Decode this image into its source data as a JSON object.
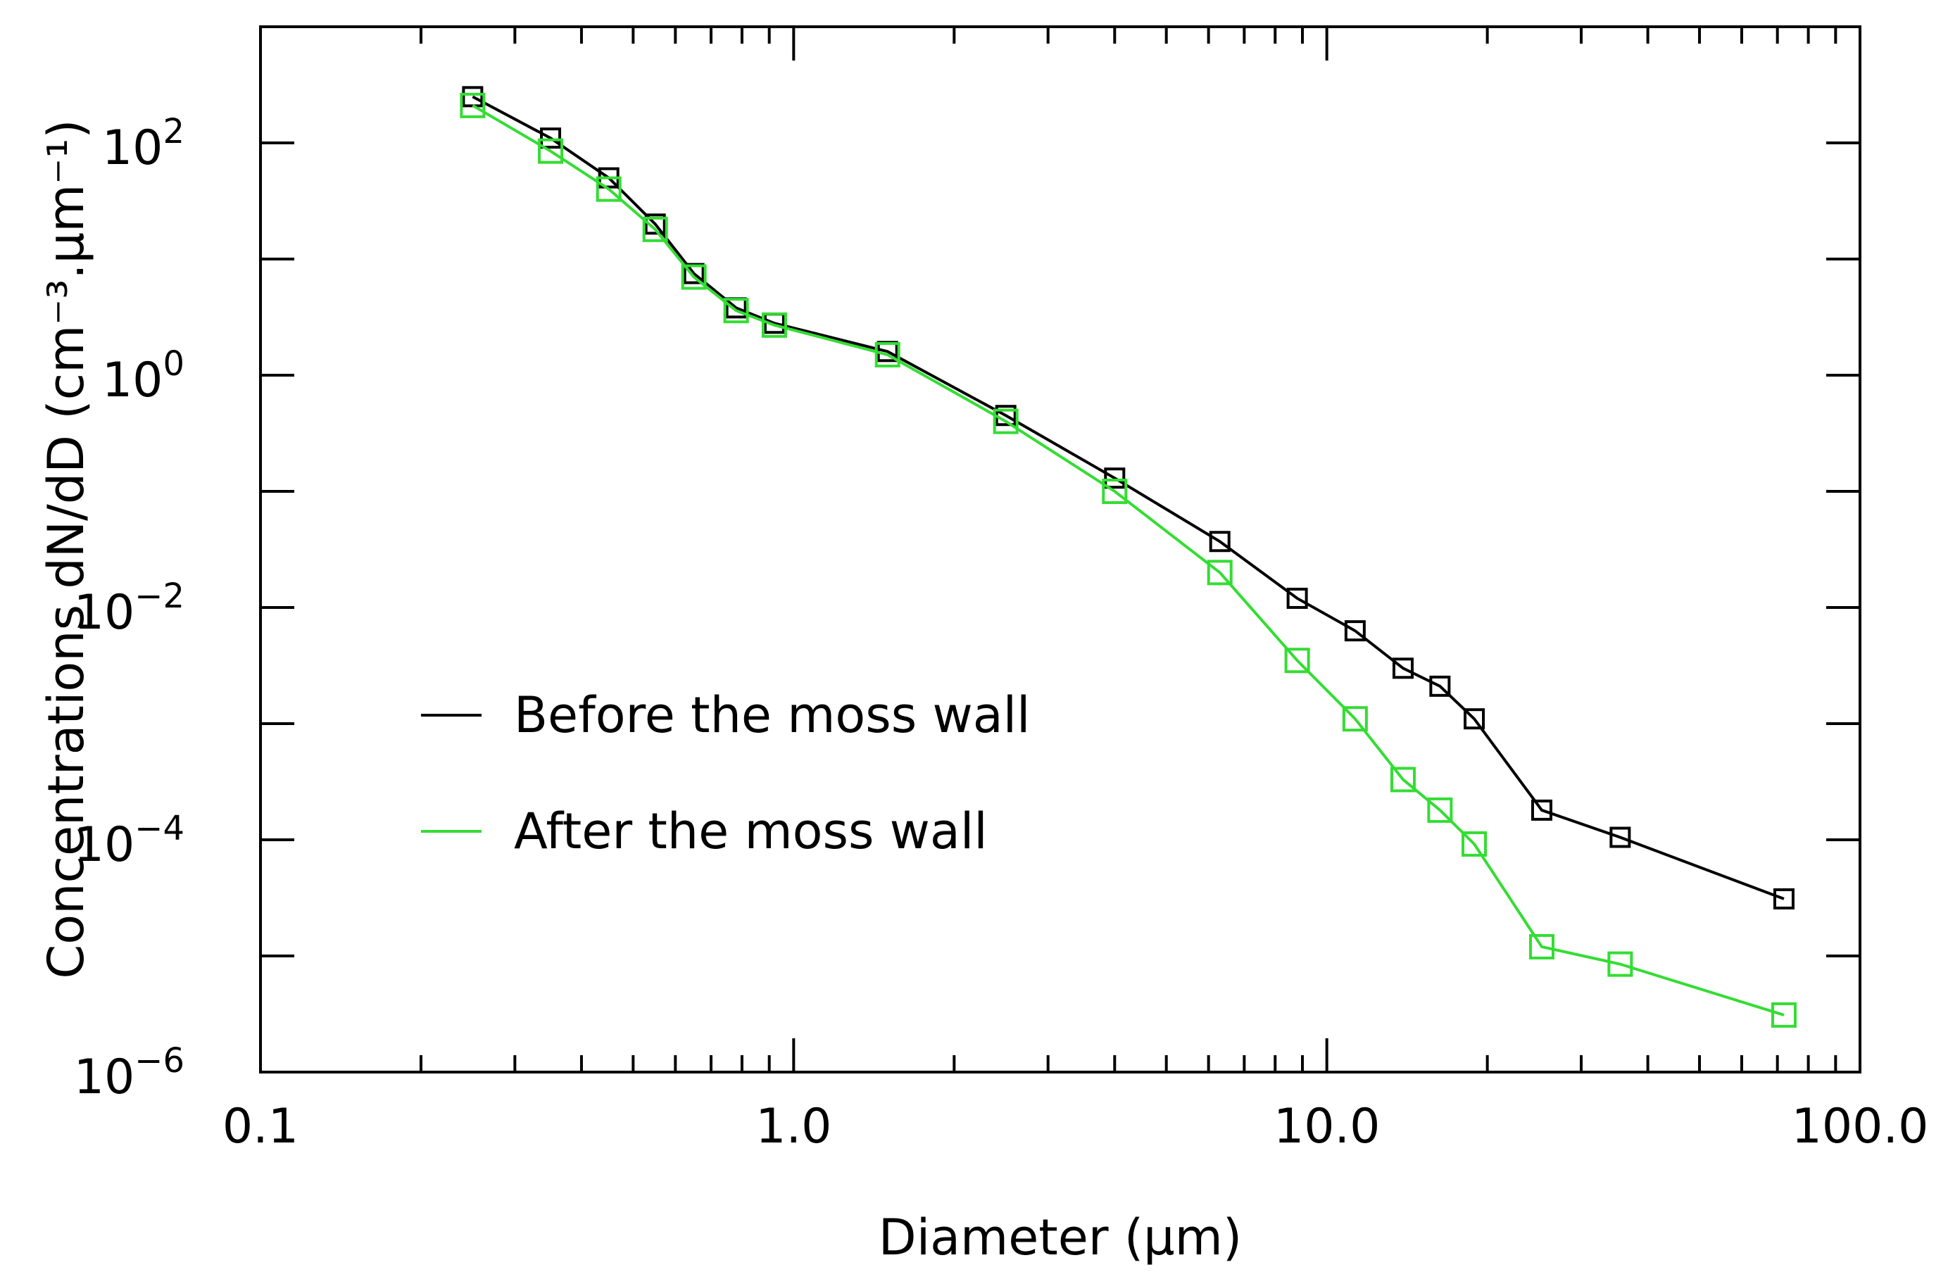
{
  "chart_data": {
    "type": "line",
    "title": "",
    "xlabel": "Diameter (μm)",
    "ylabel": "Concentrations dN/dD (cm⁻³.μm⁻¹)",
    "xscale": "log",
    "yscale": "log",
    "xlim": [
      0.1,
      100.0
    ],
    "ylim": [
      1e-06,
      1000
    ],
    "x_ticks": [
      {
        "value": 0.1,
        "label": "0.1"
      },
      {
        "value": 1.0,
        "label": "1.0"
      },
      {
        "value": 10.0,
        "label": "10.0"
      },
      {
        "value": 100.0,
        "label": "100.0"
      }
    ],
    "y_ticks": [
      {
        "value": 1e-06,
        "base": "10",
        "exp": "−6"
      },
      {
        "value": 0.0001,
        "base": "10",
        "exp": "−4"
      },
      {
        "value": 0.01,
        "base": "10",
        "exp": "−2"
      },
      {
        "value": 1,
        "base": "10",
        "exp": "0"
      },
      {
        "value": 100,
        "base": "10",
        "exp": "2"
      }
    ],
    "y_minor_ticks": [
      1e-05,
      0.001,
      0.1,
      10
    ],
    "x_minor_ticks": [
      0.2,
      0.3,
      0.4,
      0.5,
      0.6,
      0.7,
      0.8,
      0.9,
      2,
      3,
      4,
      5,
      6,
      7,
      8,
      9,
      20,
      30,
      40,
      50,
      60,
      70,
      80,
      90
    ],
    "legend_position": "lower-left",
    "series": [
      {
        "name": "Before the moss wall",
        "color": "#000000",
        "marker": "square",
        "x": [
          0.25,
          0.35,
          0.45,
          0.55,
          0.65,
          0.78,
          0.92,
          1.5,
          2.5,
          4.0,
          6.3,
          8.8,
          11.3,
          13.9,
          16.3,
          18.9,
          25.3,
          35.5,
          72.0
        ],
        "y": [
          250,
          110,
          50,
          20,
          7.5,
          3.8,
          2.8,
          1.6,
          0.45,
          0.13,
          0.037,
          0.012,
          0.0063,
          0.003,
          0.0021,
          0.0011,
          0.00018,
          0.000105,
          3.1e-05
        ]
      },
      {
        "name": "After the moss wall",
        "color": "#33dd33",
        "marker": "square",
        "x": [
          0.25,
          0.35,
          0.45,
          0.55,
          0.65,
          0.78,
          0.92,
          1.5,
          2.5,
          4.0,
          6.3,
          8.8,
          11.3,
          13.9,
          16.3,
          18.9,
          25.3,
          35.5,
          72.0
        ],
        "y": [
          210,
          85,
          40,
          18,
          7.0,
          3.6,
          2.7,
          1.5,
          0.4,
          0.1,
          0.02,
          0.0035,
          0.0011,
          0.00033,
          0.00018,
          9.2e-05,
          1.2e-05,
          8.5e-06,
          3.1e-06
        ]
      }
    ]
  }
}
